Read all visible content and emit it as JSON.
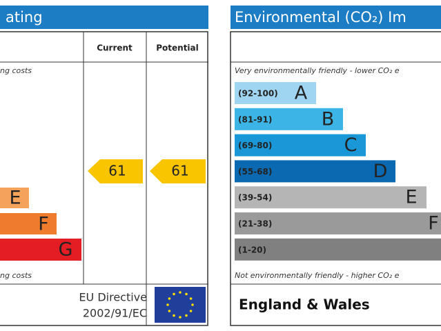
{
  "energy": {
    "title": "ating",
    "columns": [
      "Current",
      "Potential"
    ],
    "top_note": "ng costs",
    "bottom_note": "ng costs",
    "bands": [
      {
        "letter": "E"
      },
      {
        "letter": "F"
      },
      {
        "letter": "G"
      }
    ],
    "current": "61",
    "potential": "61",
    "footer": [
      "EU Directive",
      "2002/91/EC"
    ]
  },
  "environmental": {
    "title": "Environmental (CO₂) Im",
    "top_note": "Very environmentally friendly - lower CO₂ e",
    "bottom_note": "Not environmentally friendly - higher CO₂ e",
    "bands": [
      {
        "range": "(92-100)",
        "letter": "A"
      },
      {
        "range": "(81-91)",
        "letter": "B"
      },
      {
        "range": "(69-80)",
        "letter": "C"
      },
      {
        "range": "(55-68)",
        "letter": "D"
      },
      {
        "range": "(39-54)",
        "letter": "E"
      },
      {
        "range": "(21-38)",
        "letter": "F"
      },
      {
        "range": "(1-20)",
        "letter": ""
      }
    ],
    "footer": "England & Wales"
  }
}
